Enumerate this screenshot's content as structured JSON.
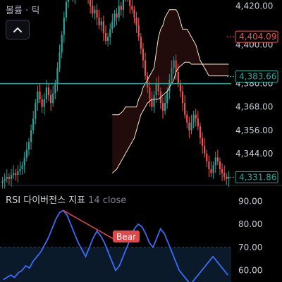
{
  "header": {
    "title": "볼륨 · 틱",
    "collapse_icon": "chevron-up-icon"
  },
  "rsi": {
    "label": "RSI 다이버전스 지표",
    "params": "14 close",
    "bear_label": "Bear"
  },
  "colors": {
    "up": "#26a69a",
    "down": "#ef5350",
    "hline": "#26a69a",
    "band": "#f5e6c8",
    "rsi_line": "#3b6cf6",
    "rsi_zone": "#0b1a2b",
    "bear": "#e0484a",
    "price_badge_down": "#ef5350",
    "price_badge_up": "#26a69a"
  },
  "chart_data": [
    {
      "type": "candlestick",
      "y_ticks": [
        "4,420.00",
        "4,400.00",
        "4,380.00",
        "4,368.00",
        "4,356.00",
        "4,344.00"
      ],
      "ylim": [
        4328,
        4423
      ],
      "price_labels": [
        {
          "text": "4,404.09",
          "value": 4404.09,
          "style": "down"
        },
        {
          "text": "4,383.66",
          "value": 4383.66,
          "style": "up"
        },
        {
          "text": "4,331.86",
          "value": 4331.86,
          "style": "up"
        }
      ],
      "horizontal_line": 4380.0,
      "closes": [
        4330,
        4331,
        4332,
        4331,
        4333,
        4334,
        4333,
        4335,
        4336,
        4338,
        4342,
        4346,
        4350,
        4356,
        4362,
        4370,
        4376,
        4372,
        4368,
        4372,
        4378,
        4374,
        4370,
        4375,
        4380,
        4388,
        4396,
        4405,
        4414,
        4422,
        4430,
        4428,
        4424,
        4430,
        4436,
        4442,
        4440,
        4434,
        4428,
        4424,
        4420,
        4416,
        4418,
        4414,
        4410,
        4412,
        4406,
        4402,
        4404,
        4408,
        4412,
        4416,
        4414,
        4420,
        4418,
        4424,
        4428,
        4425,
        4420,
        4418,
        4414,
        4410,
        4404,
        4398,
        4392,
        4384,
        4378,
        4372,
        4368,
        4374,
        4380,
        4376,
        4370,
        4366,
        4370,
        4376,
        4382,
        4388,
        4392,
        4386,
        4380,
        4376,
        4370,
        4364,
        4360,
        4356,
        4360,
        4364,
        4362,
        4358,
        4352,
        4348,
        4344,
        4340,
        4336,
        4334,
        4338,
        4342,
        4340,
        4336,
        4334,
        4332,
        4331,
        4332
      ],
      "band_upper": [
        null,
        null,
        null,
        null,
        null,
        null,
        null,
        null,
        null,
        null,
        null,
        null,
        null,
        null,
        null,
        null,
        null,
        null,
        null,
        null,
        null,
        null,
        null,
        null,
        null,
        null,
        null,
        null,
        null,
        null,
        null,
        null,
        null,
        null,
        null,
        null,
        null,
        null,
        null,
        null,
        null,
        null,
        null,
        null,
        null,
        null,
        null,
        null,
        null,
        null,
        4364,
        4364,
        4364,
        4364,
        4365,
        4366,
        4368,
        4368,
        4368,
        4368,
        4368,
        4368,
        4372,
        4374,
        4378,
        4380,
        4382,
        4384,
        4386,
        4388,
        4396,
        4404,
        4408,
        4410,
        4414,
        4416,
        4418,
        4418,
        4418,
        4418,
        4416,
        4412,
        4408,
        4408,
        4408,
        4406,
        4404,
        4402,
        4400,
        4396,
        4392,
        4390,
        4388,
        4386,
        4384,
        4384,
        4384,
        4384,
        4384,
        4384,
        4384,
        4384,
        4384,
        4384
      ],
      "band_lower": [
        null,
        null,
        null,
        null,
        null,
        null,
        null,
        null,
        null,
        null,
        null,
        null,
        null,
        null,
        null,
        null,
        null,
        null,
        null,
        null,
        null,
        null,
        null,
        null,
        null,
        null,
        null,
        null,
        null,
        null,
        null,
        null,
        null,
        null,
        null,
        null,
        null,
        null,
        null,
        null,
        null,
        null,
        null,
        null,
        null,
        null,
        null,
        null,
        null,
        null,
        4334,
        4335,
        4336,
        4338,
        4340,
        4342,
        4344,
        4346,
        4348,
        4350,
        4352,
        4356,
        4360,
        4364,
        4366,
        4368,
        4370,
        4371,
        4372,
        4372,
        4372,
        4372,
        4373,
        4374,
        4375,
        4376,
        4378,
        4380,
        4382,
        4386,
        4388,
        4389,
        4390,
        4391,
        4391,
        4391,
        4390,
        4390,
        4390,
        4390,
        4390,
        4390,
        4390,
        4390,
        4390,
        4390,
        4390,
        4390,
        4390,
        4390,
        4390,
        4390,
        4390,
        4390
      ]
    },
    {
      "type": "line",
      "name": "RSI",
      "y_ticks": [
        "90.00",
        "80.00",
        "70.00",
        "60.00"
      ],
      "ylim": [
        55,
        91
      ],
      "overbought": 70,
      "bear_index": 33,
      "values": [
        56,
        57,
        58,
        57,
        59,
        60,
        62,
        61,
        64,
        66,
        68,
        71,
        74,
        78,
        82,
        85,
        86,
        84,
        80,
        76,
        72,
        69,
        66,
        70,
        74,
        77,
        75,
        72,
        68,
        64,
        60,
        62,
        66,
        70,
        74,
        78,
        80,
        79,
        76,
        72,
        70,
        74,
        78,
        76,
        72,
        68,
        64,
        60,
        58,
        56,
        54,
        56,
        58,
        60,
        62,
        64,
        66,
        64,
        62,
        60,
        58
      ]
    }
  ]
}
